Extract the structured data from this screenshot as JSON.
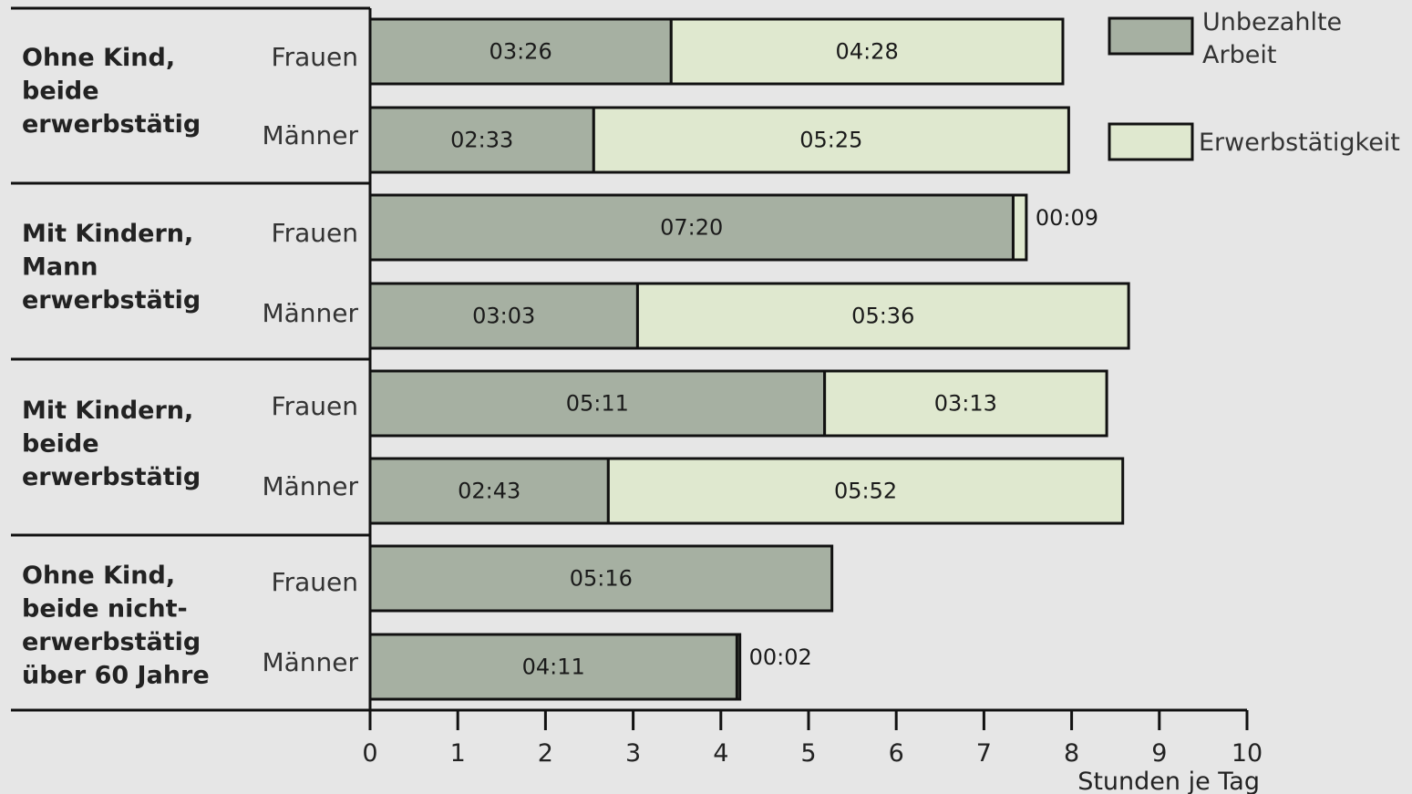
{
  "chart_data": {
    "type": "bar",
    "orientation": "horizontal",
    "stacked": true,
    "xlabel": "Stunden je Tag",
    "xlim": [
      0,
      10
    ],
    "xticks": [
      "0",
      "1",
      "2",
      "3",
      "4",
      "5",
      "6",
      "7",
      "8",
      "9",
      "10"
    ],
    "legend_position": "top-right",
    "series": [
      {
        "name": "Unbezahlte Arbeit",
        "color": "#a6b0a2"
      },
      {
        "name": "Erwerbstätigkeit",
        "color": "#dfe8cf"
      }
    ],
    "groups": [
      {
        "label": "Ohne Kind, beide erwerbstätig",
        "label_lines": [
          "Ohne Kind,",
          "beide",
          "erwerbstätig"
        ],
        "bars": [
          {
            "label": "Frauen",
            "unpaid": "03:26",
            "paid": "04:28",
            "paid_outside": false
          },
          {
            "label": "Männer",
            "unpaid": "02:33",
            "paid": "05:25",
            "paid_outside": false
          }
        ]
      },
      {
        "label": "Mit Kindern, Mann erwerbstätig",
        "label_lines": [
          "Mit  Kindern,",
          "Mann",
          "erwerbstätig"
        ],
        "bars": [
          {
            "label": "Frauen",
            "unpaid": "07:20",
            "paid": "00:09",
            "paid_outside": true
          },
          {
            "label": "Männer",
            "unpaid": "03:03",
            "paid": "05:36",
            "paid_outside": false
          }
        ]
      },
      {
        "label": "Mit Kindern, beide erwerbstätig",
        "label_lines": [
          "Mit  Kindern,",
          "beide",
          "erwerbstätig"
        ],
        "bars": [
          {
            "label": "Frauen",
            "unpaid": "05:11",
            "paid": "03:13",
            "paid_outside": false
          },
          {
            "label": "Männer",
            "unpaid": "02:43",
            "paid": "05:52",
            "paid_outside": false
          }
        ]
      },
      {
        "label": "Ohne Kind, beide nicht-erwerbstätig über 60 Jahre",
        "label_lines": [
          "Ohne Kind,",
          "beide nicht-",
          "erwerbstätig",
          "über 60 Jahre"
        ],
        "bars": [
          {
            "label": "Frauen",
            "unpaid": "05:16",
            "paid": null,
            "paid_outside": false
          },
          {
            "label": "Männer",
            "unpaid": "04:11",
            "paid": "00:02",
            "paid_outside": true
          }
        ]
      }
    ]
  }
}
